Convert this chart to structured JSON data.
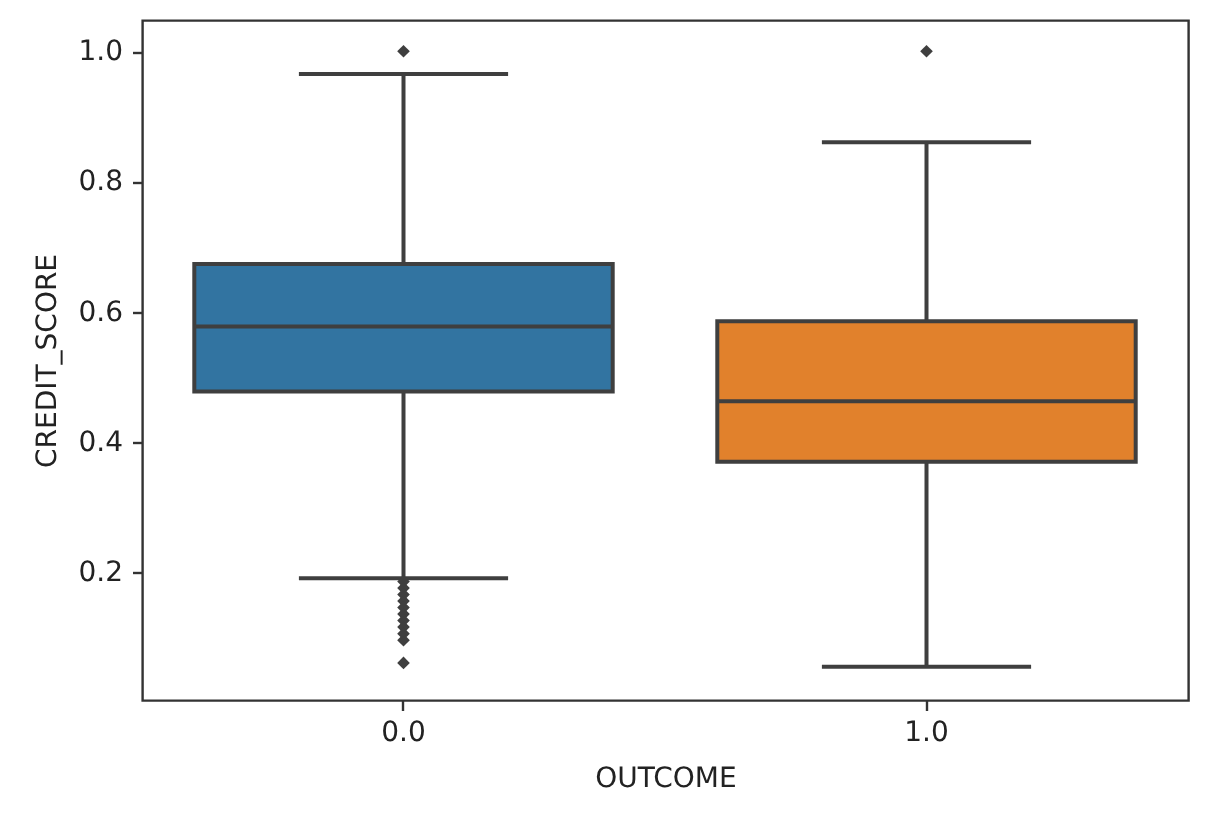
{
  "chart_data": {
    "type": "box",
    "xlabel": "OUTCOME",
    "ylabel": "CREDIT_SCORE",
    "categories": [
      "0.0",
      "1.0"
    ],
    "colors": [
      "#3274a1",
      "#e1812c"
    ],
    "boxes": [
      {
        "low": 0.19,
        "q1": 0.477,
        "median": 0.577,
        "q3": 0.673,
        "high": 0.965,
        "outliers": [
          1.0,
          0.185,
          0.175,
          0.165,
          0.155,
          0.145,
          0.135,
          0.125,
          0.115,
          0.105,
          0.095,
          0.06
        ]
      },
      {
        "low": 0.054,
        "q1": 0.369,
        "median": 0.462,
        "q3": 0.585,
        "high": 0.86,
        "outliers": [
          1.0
        ]
      }
    ],
    "ylim": [
      0.003,
      1.048
    ],
    "yticks": [
      0.2,
      0.4,
      0.6,
      0.8,
      {
        "value": 1,
        "label": "1.0"
      }
    ],
    "marker": "diamond"
  }
}
